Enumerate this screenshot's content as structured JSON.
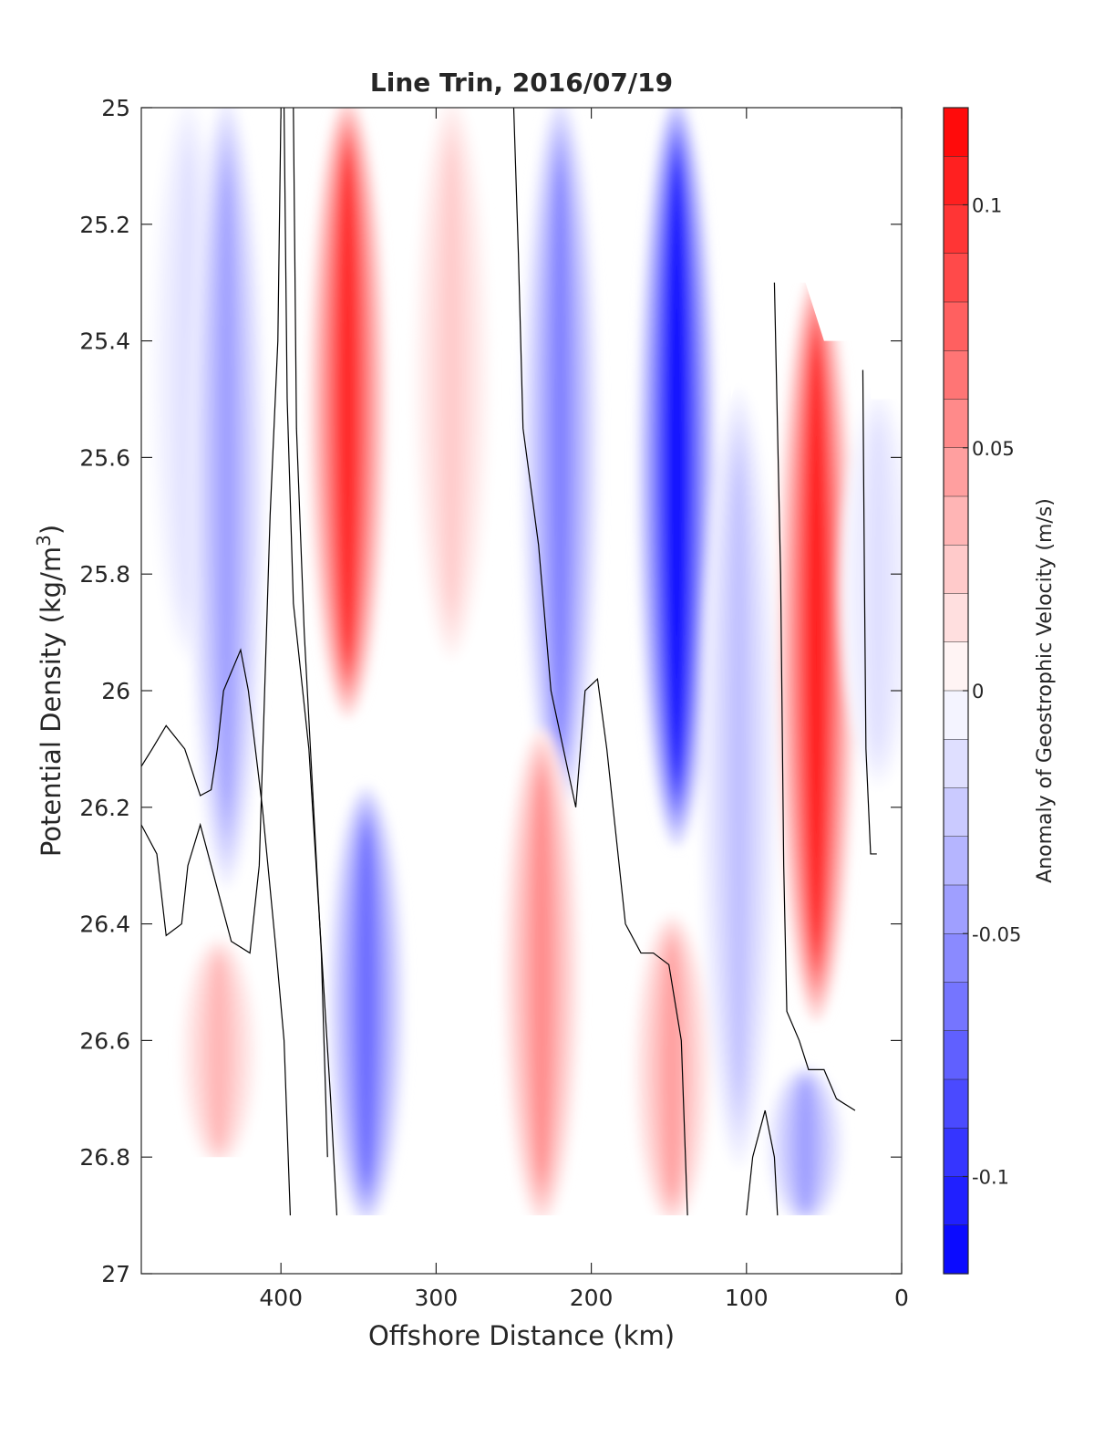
{
  "chart_data": {
    "type": "heatmap",
    "title": "Line Trin, 2016/07/19",
    "xlabel": "Offshore Distance (km)",
    "ylabel": "Potential Density (kg/m",
    "ylabel_sup": "3",
    "ylabel_close": ")",
    "x_range": [
      490,
      0
    ],
    "x_ticks": [
      400,
      300,
      200,
      100,
      0
    ],
    "x_tick_labels": [
      "400",
      "300",
      "200",
      "100",
      "0"
    ],
    "y_range": [
      25,
      27
    ],
    "y_reversed": true,
    "y_ticks": [
      25,
      25.2,
      25.4,
      25.6,
      25.8,
      26,
      26.2,
      26.4,
      26.6,
      26.8,
      27
    ],
    "y_tick_labels": [
      "25",
      "25.2",
      "25.4",
      "25.6",
      "25.8",
      "26",
      "26.2",
      "26.4",
      "26.6",
      "26.8",
      "27"
    ],
    "colorbar": {
      "label": "Anomaly of Geostrophic Velocity (m/s)",
      "range": [
        -0.12,
        0.12
      ],
      "levels": 24,
      "ticks": [
        0.1,
        0.05,
        0,
        -0.05,
        -0.1
      ],
      "tick_labels": [
        "0.1",
        "0.05",
        "0",
        "-0.05",
        "-0.1"
      ],
      "low_color": "#0000ff",
      "zero_color": "#ffffff",
      "high_color": "#ff0000"
    },
    "zero_contour_color": "#000000",
    "velocity_cores": [
      {
        "x": 460,
        "y_top": 25.0,
        "y_bottom": 25.93,
        "peak": -0.015
      },
      {
        "x": 435,
        "y_top": 25.0,
        "y_bottom": 26.32,
        "peak": -0.045
      },
      {
        "x": 357,
        "y_top": 25.0,
        "y_bottom": 26.03,
        "peak": 0.105
      },
      {
        "x": 290,
        "y_top": 25.0,
        "y_bottom": 25.93,
        "peak": 0.025
      },
      {
        "x": 220,
        "y_top": 25.0,
        "y_bottom": 26.2,
        "peak": -0.06
      },
      {
        "x": 145,
        "y_top": 25.0,
        "y_bottom": 26.25,
        "peak": -0.12
      },
      {
        "x": 105,
        "y_top": 25.5,
        "y_bottom": 26.8,
        "peak": -0.03
      },
      {
        "x": 55,
        "y_top": 25.3,
        "y_bottom": 26.55,
        "peak": 0.11
      },
      {
        "x": 15,
        "y_top": 25.5,
        "y_bottom": 26.15,
        "peak": -0.015
      },
      {
        "x": 345,
        "y_top": 26.18,
        "y_bottom": 26.9,
        "peak": -0.07
      },
      {
        "x": 232,
        "y_top": 26.08,
        "y_bottom": 26.9,
        "peak": 0.055
      },
      {
        "x": 148,
        "y_top": 26.4,
        "y_bottom": 26.9,
        "peak": 0.045
      },
      {
        "x": 440,
        "y_top": 26.44,
        "y_bottom": 26.8,
        "peak": 0.035
      },
      {
        "x": 62,
        "y_top": 26.66,
        "y_bottom": 26.9,
        "peak": -0.045
      }
    ],
    "no_data_regions": [
      {
        "points": [
          [
            490,
            26.8
          ],
          [
            372,
            26.8
          ],
          [
            360,
            26.9
          ],
          [
            270,
            26.9
          ],
          [
            260,
            26.9
          ],
          [
            210,
            26.9
          ],
          [
            120,
            26.9
          ],
          [
            30,
            26.9
          ],
          [
            30,
            26.6
          ],
          [
            20,
            26.6
          ],
          [
            20,
            26.9
          ],
          [
            0,
            26.9
          ],
          [
            0,
            27
          ],
          [
            490,
            27
          ]
        ]
      },
      {
        "points": [
          [
            124,
            25.0
          ],
          [
            0,
            25.0
          ],
          [
            0,
            25.5
          ],
          [
            20,
            25.5
          ],
          [
            20,
            25.4
          ],
          [
            32,
            25.4
          ],
          [
            50,
            25.4
          ],
          [
            62,
            25.3
          ],
          [
            77,
            25.3
          ],
          [
            90,
            25.3
          ],
          [
            110,
            25.5
          ],
          [
            110,
            25.4
          ],
          [
            113,
            25.1
          ],
          [
            120,
            25.06
          ]
        ]
      },
      {
        "points": [
          [
            490,
            26.9
          ],
          [
            490,
            27
          ],
          [
            0,
            27
          ],
          [
            0,
            26.9
          ]
        ]
      }
    ],
    "zero_contours": [
      [
        [
          398,
          25.0
        ],
        [
          396,
          25.5
        ],
        [
          392,
          25.85
        ],
        [
          382,
          26.1
        ],
        [
          368,
          26.7
        ],
        [
          364,
          26.9
        ]
      ],
      [
        [
          392,
          25.0
        ],
        [
          390,
          25.55
        ],
        [
          385,
          25.9
        ],
        [
          380,
          26.15
        ],
        [
          374,
          26.45
        ],
        [
          370,
          26.8
        ]
      ],
      [
        [
          490,
          26.23
        ],
        [
          480,
          26.28
        ],
        [
          474,
          26.42
        ],
        [
          464,
          26.4
        ],
        [
          460,
          26.3
        ],
        [
          452,
          26.23
        ],
        [
          444,
          26.31
        ],
        [
          432,
          26.43
        ],
        [
          420,
          26.45
        ],
        [
          414,
          26.3
        ],
        [
          407,
          25.7
        ],
        [
          402,
          25.4
        ],
        [
          400,
          25.0
        ]
      ],
      [
        [
          394,
          26.9
        ],
        [
          398,
          26.6
        ],
        [
          403,
          26.45
        ],
        [
          412,
          26.2
        ],
        [
          421,
          26.0
        ],
        [
          426,
          25.93
        ],
        [
          437,
          26.0
        ],
        [
          441,
          26.1
        ],
        [
          445,
          26.17
        ],
        [
          452,
          26.18
        ],
        [
          462,
          26.1
        ],
        [
          474,
          26.06
        ],
        [
          483,
          26.1
        ],
        [
          490,
          26.13
        ]
      ],
      [
        [
          250,
          25.0
        ],
        [
          247,
          25.25
        ],
        [
          244,
          25.55
        ],
        [
          234,
          25.75
        ],
        [
          226,
          26.0
        ],
        [
          218,
          26.1
        ],
        [
          210,
          26.2
        ],
        [
          204,
          26.0
        ],
        [
          196,
          25.98
        ],
        [
          190,
          26.1
        ],
        [
          178,
          26.4
        ],
        [
          168,
          26.45
        ],
        [
          160,
          26.45
        ],
        [
          150,
          26.47
        ],
        [
          142,
          26.6
        ],
        [
          138,
          26.9
        ]
      ],
      [
        [
          82,
          25.3
        ],
        [
          78,
          25.8
        ],
        [
          76,
          26.3
        ],
        [
          74,
          26.55
        ],
        [
          66,
          26.6
        ],
        [
          60,
          26.65
        ],
        [
          50,
          26.65
        ],
        [
          42,
          26.7
        ],
        [
          30,
          26.72
        ]
      ],
      [
        [
          25,
          25.45
        ],
        [
          24,
          25.8
        ],
        [
          23,
          26.1
        ],
        [
          20,
          26.28
        ],
        [
          16,
          26.28
        ]
      ],
      [
        [
          100,
          26.9
        ],
        [
          96,
          26.8
        ],
        [
          88,
          26.72
        ],
        [
          82,
          26.8
        ],
        [
          80,
          26.9
        ]
      ]
    ]
  }
}
